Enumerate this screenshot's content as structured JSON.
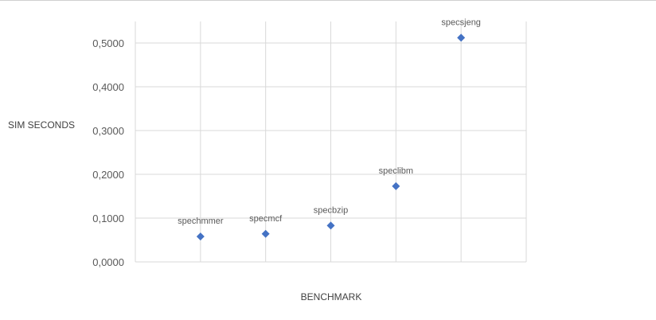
{
  "chart_data": {
    "type": "scatter",
    "title": "",
    "xlabel": "BENCHMARK",
    "ylabel": "SIM SECONDS",
    "ylim": [
      0,
      0.5
    ],
    "ytick_labels": [
      "0,0000",
      "0,1000",
      "0,2000",
      "0,3000",
      "0,4000",
      "0,5000"
    ],
    "grid": true,
    "legend": "none",
    "marker": "diamond",
    "marker_color": "#4472c4",
    "points": [
      {
        "x": 1,
        "y": 0.058,
        "label": "spechmmer"
      },
      {
        "x": 2,
        "y": 0.064,
        "label": "specmcf"
      },
      {
        "x": 3,
        "y": 0.083,
        "label": "specbzip"
      },
      {
        "x": 4,
        "y": 0.173,
        "label": "speclibm"
      },
      {
        "x": 5,
        "y": 0.512,
        "label": "specsjeng"
      }
    ]
  }
}
